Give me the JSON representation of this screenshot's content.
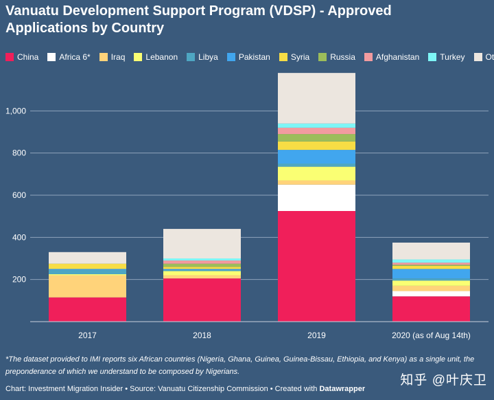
{
  "header": {
    "title": "Vanuatu Development Support Program (VDSP) - Approved Applications by Country"
  },
  "colors": {
    "China": "#f01f5a",
    "Africa 6*": "#ffffff",
    "Iraq": "#ffd37a",
    "Lebanon": "#faff73",
    "Libya": "#4ea6c2",
    "Pakistan": "#41a6ee",
    "Syria": "#f7dd45",
    "Russia": "#9cbd5a",
    "Afghanistan": "#f29b9f",
    "Turkey": "#7ef6f6",
    "Other": "#ece6df"
  },
  "chart_data": {
    "type": "bar",
    "stacked": true,
    "title": "Vanuatu Development Support Program (VDSP) - Approved Applications by Country",
    "xlabel": "",
    "ylabel": "",
    "ylim": [
      0,
      1200
    ],
    "yticks": [
      200,
      400,
      600,
      800,
      "1,000"
    ],
    "ytick_values": [
      200,
      400,
      600,
      800,
      1000
    ],
    "grid": true,
    "legend_position": "top",
    "categories": [
      "2017",
      "2018",
      "2019",
      "2020 (as of Aug 14th)"
    ],
    "series": [
      {
        "name": "China",
        "values": [
          115,
          205,
          525,
          120
        ]
      },
      {
        "name": "Africa 6*",
        "values": [
          0,
          0,
          125,
          25
        ]
      },
      {
        "name": "Iraq",
        "values": [
          105,
          15,
          20,
          25
        ]
      },
      {
        "name": "Lebanon",
        "values": [
          5,
          20,
          65,
          25
        ]
      },
      {
        "name": "Libya",
        "values": [
          20,
          5,
          15,
          10
        ]
      },
      {
        "name": "Pakistan",
        "values": [
          5,
          5,
          65,
          45
        ]
      },
      {
        "name": "Syria",
        "values": [
          25,
          10,
          40,
          15
        ]
      },
      {
        "name": "Russia",
        "values": [
          0,
          15,
          35,
          5
        ]
      },
      {
        "name": "Afghanistan",
        "values": [
          0,
          15,
          30,
          10
        ]
      },
      {
        "name": "Turkey",
        "values": [
          0,
          10,
          20,
          15
        ]
      },
      {
        "name": "Other",
        "values": [
          55,
          140,
          240,
          80
        ]
      }
    ]
  },
  "footnote": "*The dataset provided to IMI reports six African countries (Nigeria, Ghana, Guinea, Guinea-Bissau, Ethiopia, and Kenya) as a single unit, the preponderance of which we understand to be composed by Nigerians.",
  "credits": {
    "prefix": "Chart: Investment Migration Insider • Source: Vanuatu Citizenship Commission • Created with",
    "tool": "Datawrapper"
  },
  "watermark": "知乎 @叶庆卫"
}
